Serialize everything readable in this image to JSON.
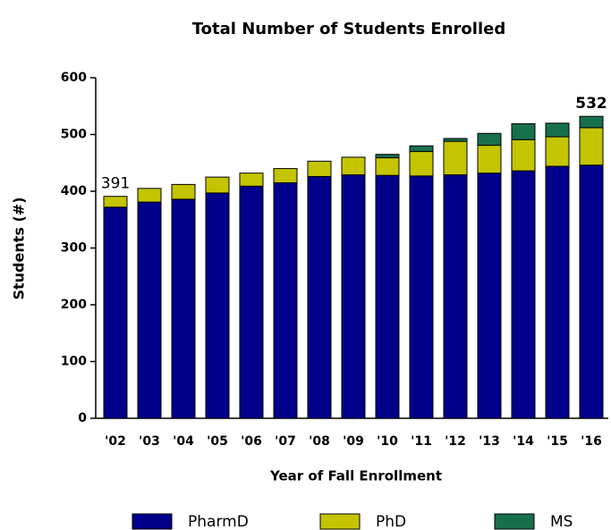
{
  "chart_data": {
    "type": "stacked_bar",
    "title": "Total Number of Students Enrolled",
    "x_label": "Year of Fall Enrollment",
    "y_label": "Students (#)",
    "categories": [
      "'02",
      "'03",
      "'04",
      "'05",
      "'06",
      "'07",
      "'08",
      "'09",
      "'10",
      "'11",
      "'12",
      "'13",
      "'14",
      "'15",
      "'16"
    ],
    "series": [
      {
        "name": "PharmD",
        "color": "#00008b",
        "values": [
          372,
          381,
          386,
          397,
          409,
          415,
          426,
          429,
          428,
          427,
          429,
          432,
          436,
          444,
          446
        ]
      },
      {
        "name": "PhD",
        "color": "#c4c400",
        "values": [
          19,
          24,
          26,
          28,
          23,
          25,
          27,
          31,
          31,
          43,
          59,
          49,
          55,
          52,
          66
        ]
      },
      {
        "name": "MS",
        "color": "#17704c",
        "values": [
          0,
          0,
          0,
          0,
          0,
          0,
          0,
          0,
          6,
          10,
          5,
          21,
          28,
          24,
          20
        ]
      }
    ],
    "annotations": [
      {
        "category": "'02",
        "value": 391,
        "color": "#333333"
      },
      {
        "category": "'16",
        "value": 532,
        "color": "#1a1aff"
      }
    ],
    "ylim": [
      0,
      600
    ],
    "yticks": [
      0,
      100,
      200,
      300,
      400,
      500,
      600
    ],
    "legend": "bottom"
  }
}
